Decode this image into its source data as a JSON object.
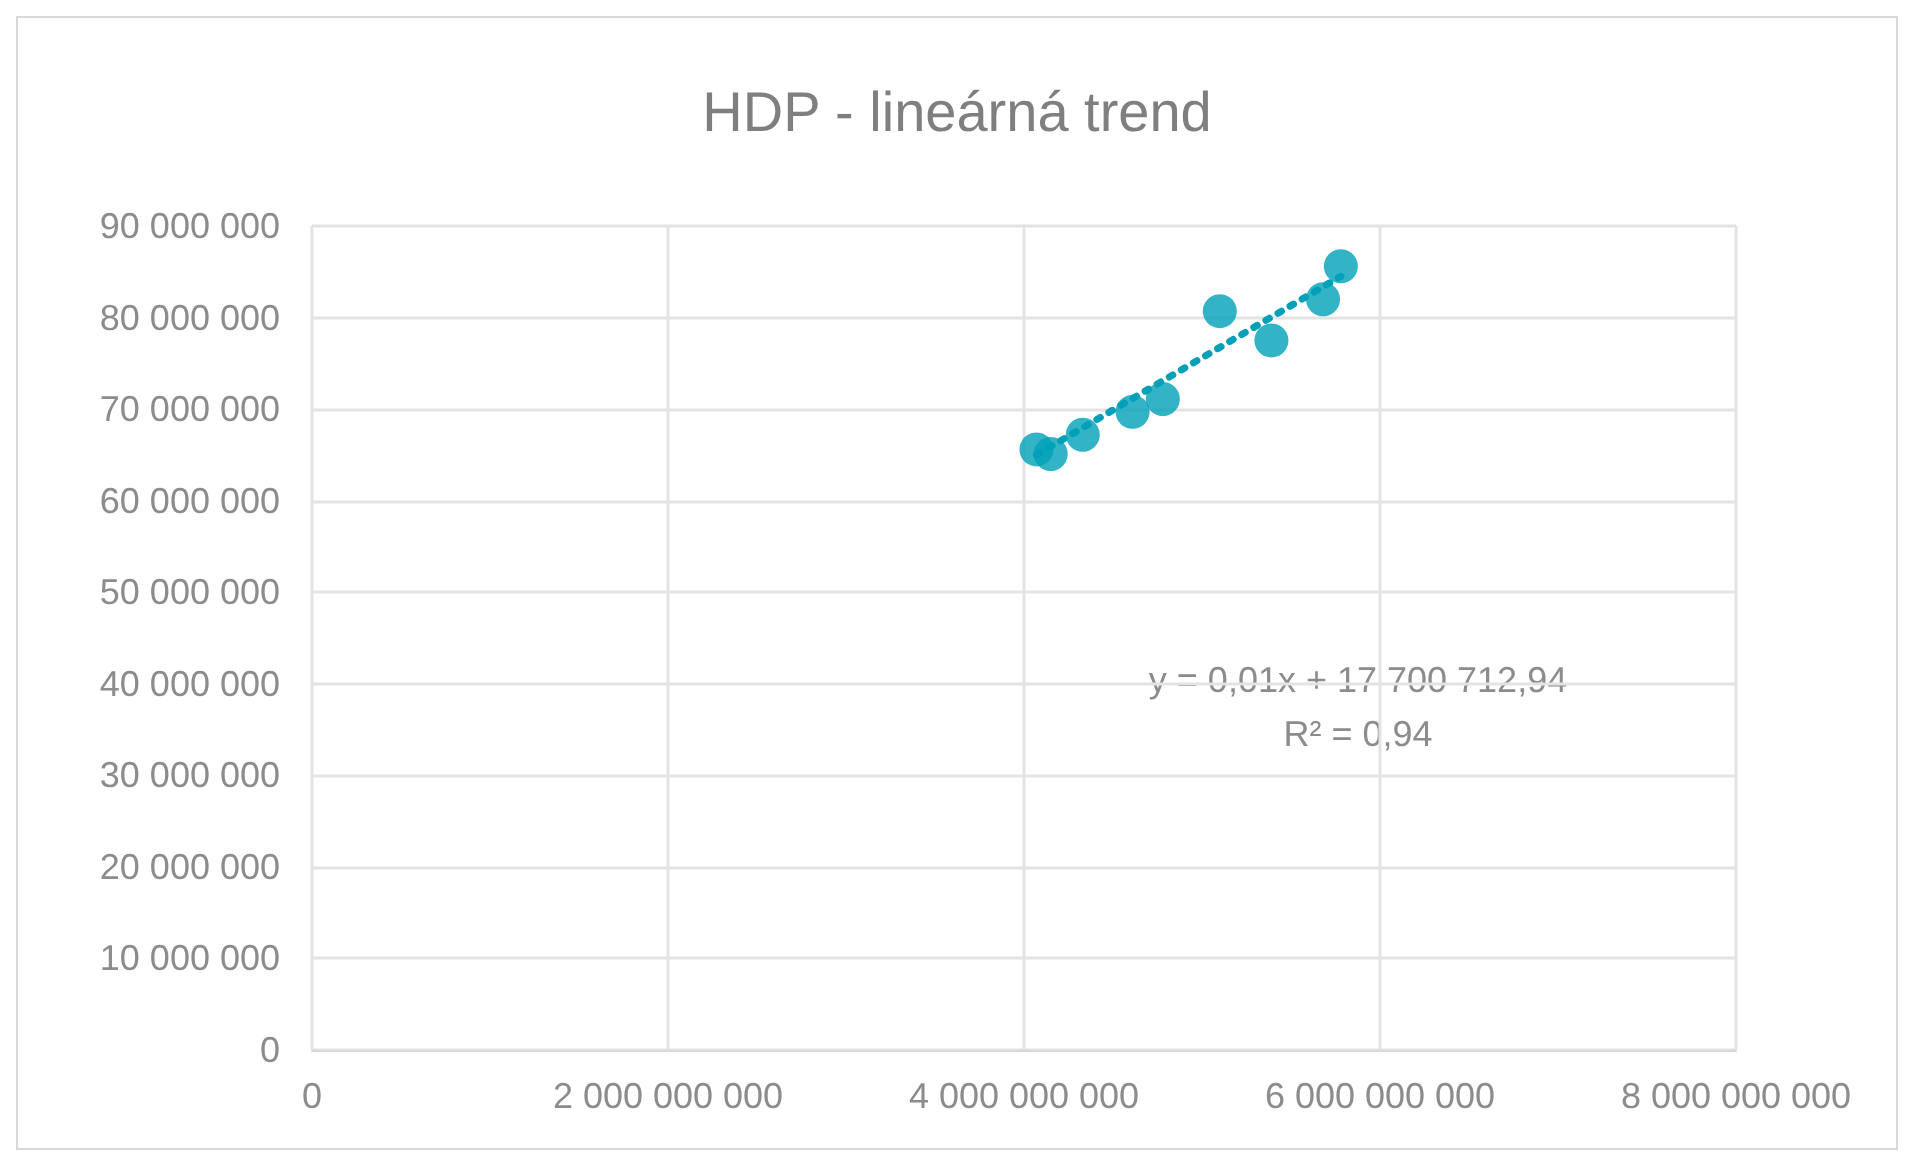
{
  "chart_data": {
    "type": "scatter",
    "title": "HDP - lineárná trend",
    "series": [
      {
        "color": "#00a0b8",
        "x": [
          4070000000,
          4150000000,
          4330000000,
          4610000000,
          4780000000,
          5100000000,
          5390000000,
          5680000000,
          5780000000
        ],
        "values": [
          65600000,
          65100000,
          67200000,
          69700000,
          71100000,
          80700000,
          77500000,
          82000000,
          85600000
        ]
      },
      {
        "type": "line",
        "color": "#00a0b8",
        "line_style": "dotted",
        "marker": "none",
        "x": [
          4070000000,
          5780000000
        ],
        "values": [
          65000000,
          84500000
        ]
      }
    ],
    "marker": "circle",
    "xlim": [
      0,
      8000000000
    ],
    "xticks": [
      {
        "value": 0,
        "label": "0"
      },
      {
        "value": 2000000000,
        "label": "2 000 000 000"
      },
      {
        "value": 4000000000,
        "label": "4 000 000 000"
      },
      {
        "value": 6000000000,
        "label": "6 000 000 000"
      },
      {
        "value": 8000000000,
        "label": "8 000 000 000"
      }
    ],
    "ylim": [
      0,
      90000000
    ],
    "yticks": [
      {
        "value": 0,
        "label": "0"
      },
      {
        "value": 10000000,
        "label": "10 000 000"
      },
      {
        "value": 20000000,
        "label": "20 000 000"
      },
      {
        "value": 30000000,
        "label": "30 000 000"
      },
      {
        "value": 40000000,
        "label": "40 000 000"
      },
      {
        "value": 50000000,
        "label": "50 000 000"
      },
      {
        "value": 60000000,
        "label": "60 000 000"
      },
      {
        "value": 70000000,
        "label": "70 000 000"
      },
      {
        "value": 80000000,
        "label": "80 000 000"
      },
      {
        "value": 90000000,
        "label": "90 000 000"
      }
    ],
    "grid": true,
    "annotations": [
      "y = 0,01x + 17 700 712,94",
      "R² = 0,94"
    ]
  }
}
